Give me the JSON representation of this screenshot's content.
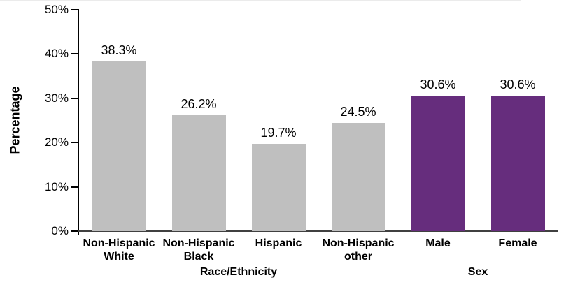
{
  "chart_data": {
    "type": "bar",
    "title": "",
    "ylabel": "Percentage",
    "categories": [
      "Non-Hispanic\nWhite",
      "Non-Hispanic\nBlack",
      "Hispanic",
      "Non-Hispanic\nother",
      "Male",
      "Female"
    ],
    "values": [
      38.3,
      26.2,
      19.7,
      24.5,
      30.6,
      30.6
    ],
    "value_labels": [
      "38.3%",
      "26.2%",
      "19.7%",
      "24.5%",
      "30.6%",
      "30.6%"
    ],
    "bar_colors": [
      "#BFBFBF",
      "#BFBFBF",
      "#BFBFBF",
      "#BFBFBF",
      "#662D7D",
      "#662D7D"
    ],
    "groups": [
      {
        "label": "Race/Ethnicity",
        "start": 0,
        "end": 3
      },
      {
        "label": "Sex",
        "start": 4,
        "end": 5
      }
    ],
    "ylim": [
      0,
      50
    ],
    "ytick_values": [
      0,
      10,
      20,
      30,
      40,
      50
    ],
    "ytick_labels": [
      "0%",
      "10%",
      "20%",
      "30%",
      "40%",
      "50%"
    ],
    "grid": false,
    "legend": "none",
    "colors": {
      "gray_bar": "#BFBFBF",
      "purple_bar": "#662D7D",
      "y_axis": "#000000",
      "x_axis": "#404040",
      "text": "#000000"
    }
  }
}
